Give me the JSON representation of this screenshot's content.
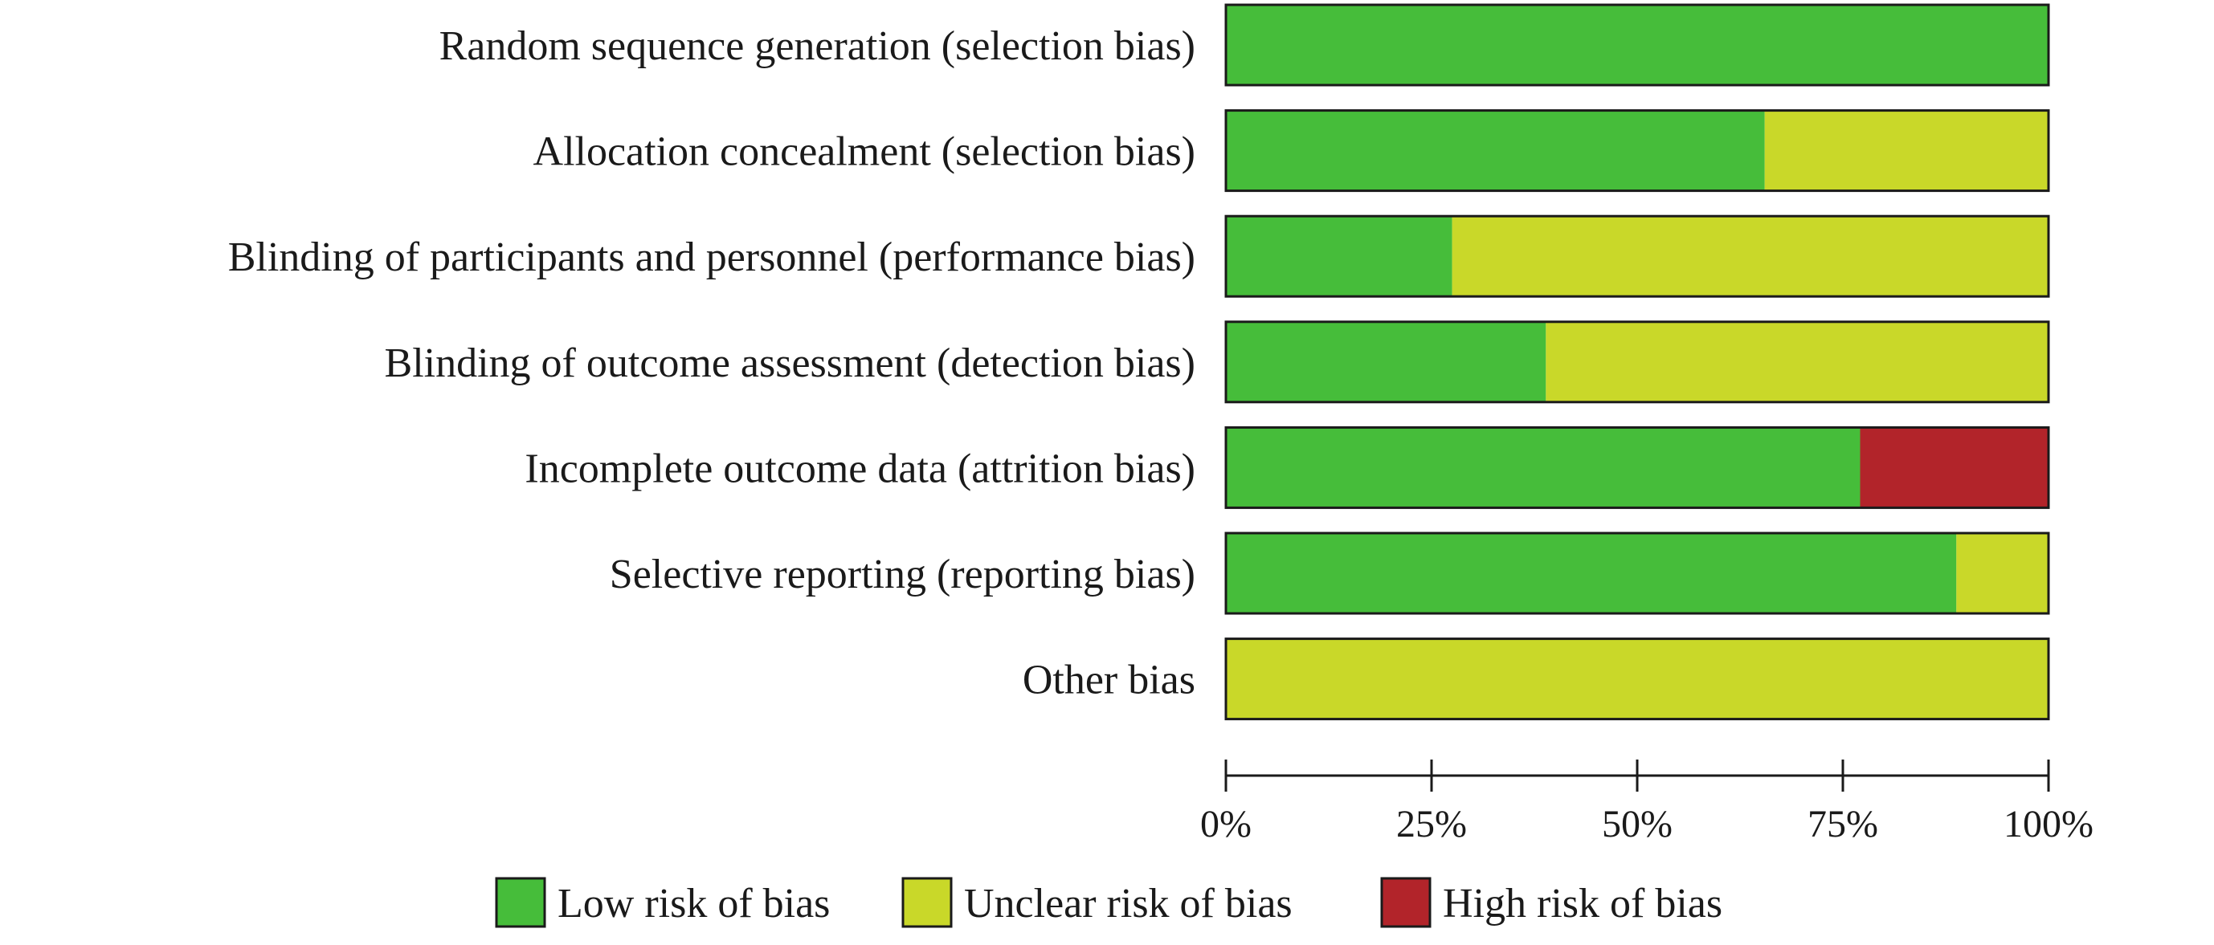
{
  "chart_data": {
    "type": "bar",
    "orientation": "horizontal",
    "stacked": true,
    "percent": true,
    "categories": [
      "Random sequence generation (selection bias)",
      "Allocation concealment (selection bias)",
      "Blinding of participants and personnel (performance bias)",
      "Blinding of outcome assessment (detection bias)",
      "Incomplete outcome data (attrition bias)",
      "Selective reporting (reporting bias)",
      "Other bias"
    ],
    "series": [
      {
        "name": "Low risk of bias",
        "color": "#46bd3a",
        "values": [
          100,
          65.5,
          27.5,
          38.9,
          77.1,
          88.8,
          0
        ]
      },
      {
        "name": "Unclear risk of bias",
        "color": "#c9d829",
        "values": [
          0,
          34.5,
          72.5,
          61.1,
          0,
          11.2,
          100
        ]
      },
      {
        "name": "High risk of bias",
        "color": "#b2242a",
        "values": [
          0,
          0,
          0,
          0,
          22.9,
          0,
          0
        ]
      }
    ],
    "xlim": [
      0,
      100
    ],
    "xticks": [
      0,
      25,
      50,
      75,
      100
    ],
    "xtick_labels": [
      "0%",
      "25%",
      "50%",
      "75%",
      "100%"
    ],
    "legend_position": "bottom",
    "grid": false
  }
}
